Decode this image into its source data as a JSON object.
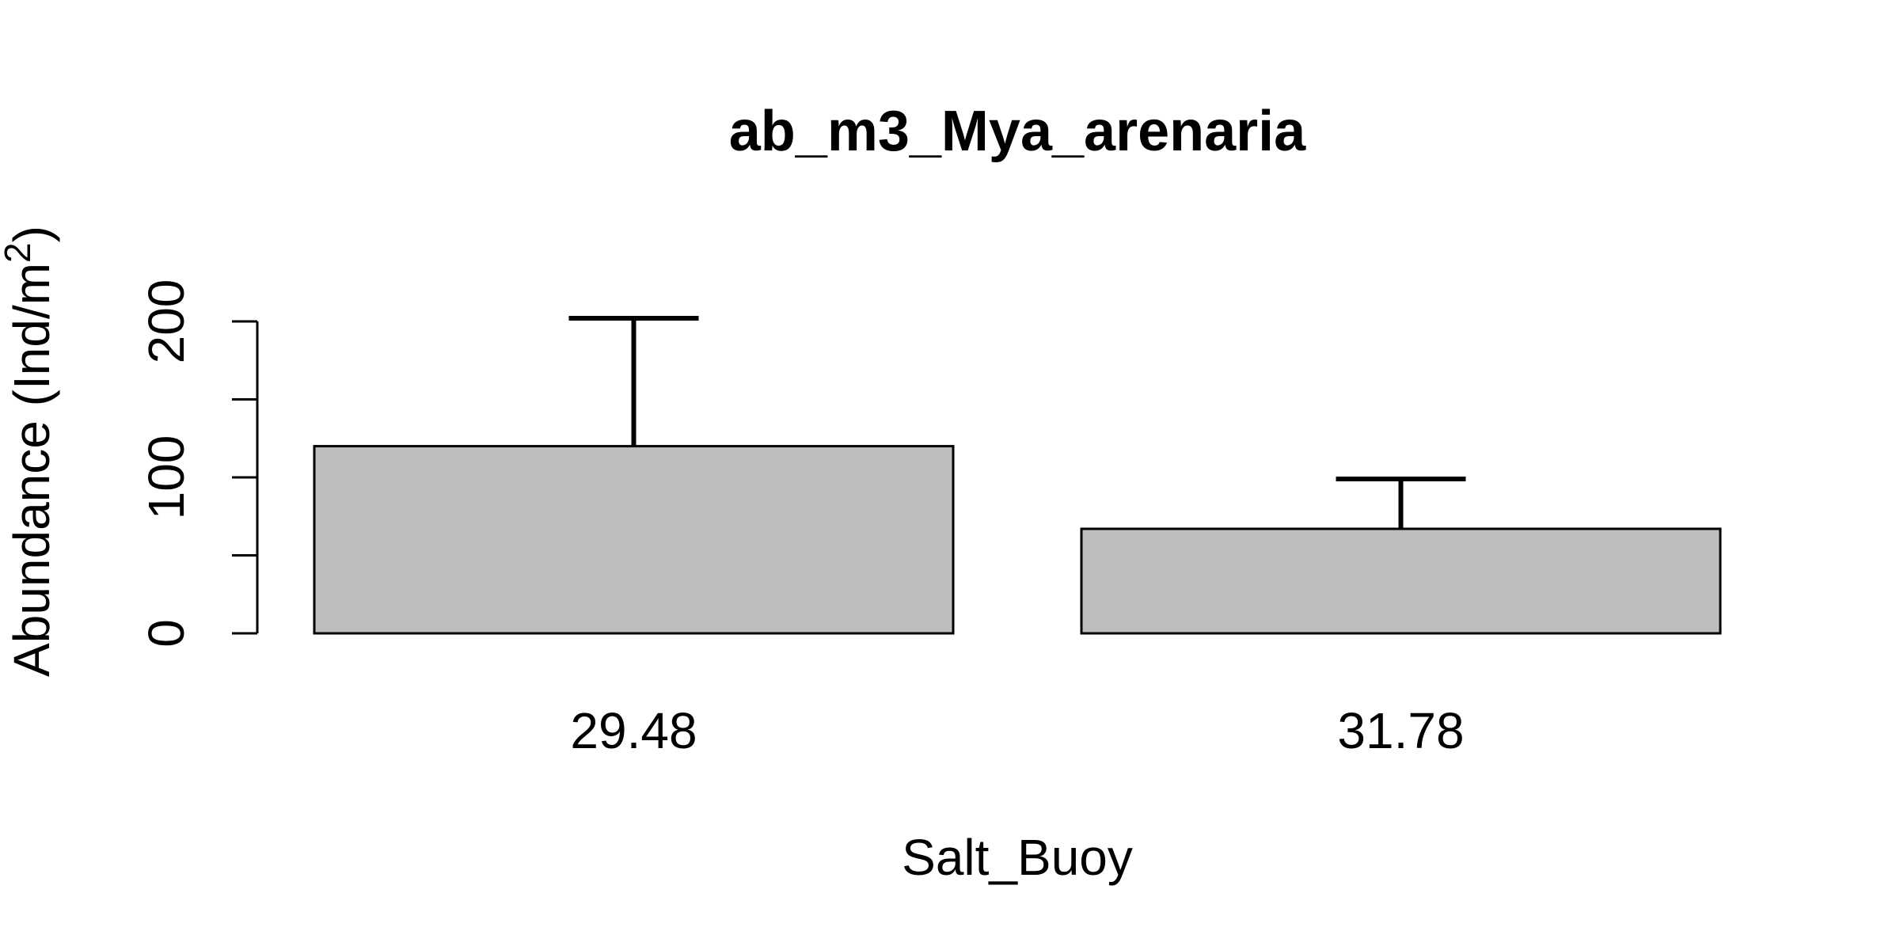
{
  "chart_data": {
    "type": "bar",
    "title": "ab_m3_Mya_arenaria",
    "xlabel": "Salt_Buoy",
    "ylabel": "Abundance (Ind/m",
    "ylabel_sup": "2",
    "ylabel_close": ")",
    "categories": [
      "29.48",
      "31.78"
    ],
    "values": [
      120,
      67
    ],
    "error_upper": [
      202,
      99
    ],
    "ylim": [
      0,
      210
    ],
    "yticks": [
      0,
      50,
      100,
      150,
      200
    ],
    "ytick_labels": [
      "0",
      "",
      "100",
      "",
      "200"
    ],
    "bar_color": "#bebebe",
    "grid": false,
    "legend": "none"
  }
}
